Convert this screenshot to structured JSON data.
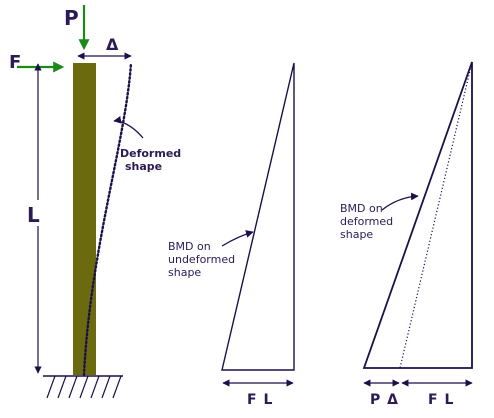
{
  "labels": {
    "load_p": "P",
    "load_f": "F",
    "deflection": "Δ",
    "length": "L",
    "deformed_shape_line1": "Deformed",
    "deformed_shape_line2": "shape",
    "bmd_undeformed_line1": "BMD on",
    "bmd_undeformed_line2": "undeformed",
    "bmd_undeformed_line3": "shape",
    "bmd_deformed_line1": "BMD on",
    "bmd_deformed_line2": "deformed",
    "bmd_deformed_line3": "shape",
    "dim_fl_1": "F L",
    "dim_p_delta": "P Δ",
    "dim_fl_2": "F L"
  },
  "colors": {
    "column_fill": "#6b6a0f",
    "load_arrow": "#1a8a1a",
    "line": "#1d0f4a",
    "label_dark": "#2a1a55"
  }
}
